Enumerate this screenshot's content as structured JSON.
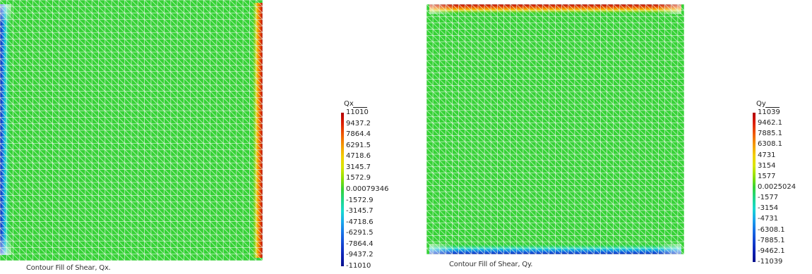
{
  "plots": [
    {
      "caption": "Contour Fill of Shear, Qx.",
      "legend": {
        "title": "Qx",
        "ticks": [
          "11010",
          "9437.2",
          "7864.4",
          "6291.5",
          "4718.6",
          "3145.7",
          "1572.9",
          "0.00079346",
          "-1572.9",
          "-3145.7",
          "-4718.6",
          "-6291.5",
          "-7864.4",
          "-9437.2",
          "-11010"
        ]
      }
    },
    {
      "caption": "Contour Fill of Shear, Qy.",
      "legend": {
        "title": "Qy",
        "ticks": [
          "11039",
          "9462.1",
          "7885.1",
          "6308.1",
          "4731",
          "3154",
          "1577",
          "0.0025024",
          "-1577",
          "-3154",
          "-4731",
          "-6308.1",
          "-7885.1",
          "-9462.1",
          "-11039"
        ]
      }
    }
  ],
  "colors": {
    "field": "#36d236",
    "mesh": "#e8f8e8",
    "scale": [
      "#b30000",
      "#dd1f00",
      "#ef5a00",
      "#f39a00",
      "#f2cf00",
      "#d8e600",
      "#8ee000",
      "#36d236",
      "#1fd68a",
      "#18d8d0",
      "#1aa6ec",
      "#1870e6",
      "#1444d2",
      "#0d22b4",
      "#070f8c"
    ]
  }
}
